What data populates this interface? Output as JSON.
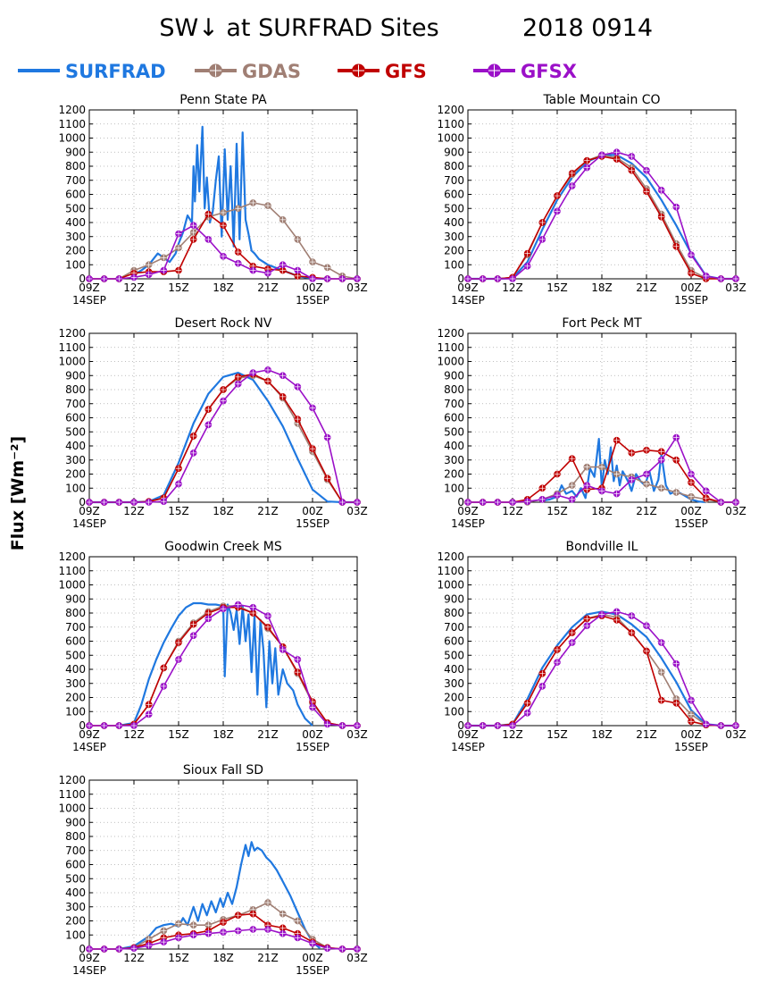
{
  "figure": {
    "title": "SW↓ at SURFRAD Sites",
    "date": "2018 0914",
    "ylabel": "Flux [Wm⁻²]"
  },
  "legend": [
    {
      "name": "SURFRAD",
      "color": "#1f78e0",
      "marker": "none"
    },
    {
      "name": "GDAS",
      "color": "#a07f74",
      "marker": "circle"
    },
    {
      "name": "GFS",
      "color": "#c00000",
      "marker": "circle"
    },
    {
      "name": "GFSX",
      "color": "#9b10c8",
      "marker": "circle"
    }
  ],
  "axes": {
    "xticks": [
      "09Z",
      "12Z",
      "15Z",
      "18Z",
      "21Z",
      "00Z",
      "03Z"
    ],
    "xsub": [
      {
        "at": "09Z",
        "text": "14SEP"
      },
      {
        "at": "00Z",
        "text": "15SEP"
      }
    ],
    "xlim_hours": [
      9,
      27
    ],
    "ylim": [
      0,
      1200
    ],
    "yticks": [
      0,
      100,
      200,
      300,
      400,
      500,
      600,
      700,
      800,
      900,
      1000,
      1100,
      1200
    ],
    "grid": true
  },
  "chart_data": [
    {
      "type": "line",
      "title": "Penn State PA",
      "x_hours": [
        9,
        10,
        11,
        12,
        13,
        14,
        15,
        16,
        17,
        18,
        19,
        20,
        21,
        22,
        23,
        24,
        25,
        26,
        27
      ],
      "series": [
        {
          "name": "SURFRAD",
          "x": [
            12,
            12.5,
            13,
            13.3,
            13.6,
            14,
            14.4,
            14.8,
            15,
            15.3,
            15.6,
            15.9,
            16,
            16.1,
            16.25,
            16.4,
            16.6,
            16.75,
            16.9,
            17.1,
            17.3,
            17.5,
            17.7,
            17.9,
            18.1,
            18.3,
            18.5,
            18.7,
            18.9,
            19.1,
            19.3,
            19.5,
            19.7,
            19.9,
            20.1,
            20.4,
            20.7,
            21,
            21.5,
            22,
            22.5,
            23,
            23.5,
            24,
            24.5,
            25
          ],
          "values": [
            30,
            60,
            100,
            140,
            180,
            150,
            120,
            180,
            250,
            330,
            450,
            400,
            800,
            550,
            950,
            620,
            1080,
            500,
            720,
            400,
            480,
            700,
            870,
            300,
            920,
            420,
            800,
            230,
            960,
            280,
            1040,
            420,
            320,
            200,
            180,
            140,
            120,
            100,
            80,
            60,
            40,
            20,
            10,
            5,
            2,
            0
          ]
        },
        {
          "name": "GDAS",
          "values": [
            0,
            0,
            0,
            60,
            100,
            150,
            220,
            330,
            440,
            470,
            500,
            540,
            520,
            420,
            280,
            120,
            80,
            20,
            0
          ]
        },
        {
          "name": "GFS",
          "values": [
            0,
            0,
            0,
            40,
            50,
            50,
            60,
            280,
            460,
            380,
            190,
            90,
            70,
            60,
            20,
            10,
            0,
            0,
            0
          ]
        },
        {
          "name": "GFSX",
          "values": [
            0,
            0,
            0,
            10,
            30,
            60,
            320,
            380,
            280,
            160,
            110,
            60,
            40,
            100,
            60,
            0,
            0,
            0,
            0
          ]
        }
      ]
    },
    {
      "type": "line",
      "title": "Table Mountain CO",
      "x_hours": [
        9,
        10,
        11,
        12,
        13,
        14,
        15,
        16,
        17,
        18,
        19,
        20,
        21,
        22,
        23,
        24,
        25,
        26,
        27
      ],
      "series": [
        {
          "name": "SURFRAD",
          "values": [
            0,
            0,
            0,
            5,
            120,
            350,
            560,
            720,
            830,
            880,
            880,
            820,
            720,
            560,
            380,
            180,
            20,
            0,
            0
          ]
        },
        {
          "name": "GDAS",
          "values": [
            0,
            0,
            0,
            10,
            170,
            400,
            590,
            740,
            840,
            880,
            860,
            790,
            640,
            460,
            250,
            60,
            5,
            0,
            0
          ]
        },
        {
          "name": "GFS",
          "values": [
            0,
            0,
            0,
            10,
            180,
            400,
            590,
            750,
            840,
            870,
            850,
            770,
            620,
            440,
            230,
            40,
            0,
            0,
            0
          ]
        },
        {
          "name": "GFSX",
          "values": [
            0,
            0,
            0,
            0,
            90,
            280,
            480,
            660,
            790,
            880,
            900,
            870,
            770,
            630,
            510,
            170,
            20,
            0,
            0
          ]
        }
      ]
    },
    {
      "type": "line",
      "title": "Desert Rock NV",
      "x_hours": [
        9,
        10,
        11,
        12,
        13,
        14,
        15,
        16,
        17,
        18,
        19,
        20,
        21,
        22,
        23,
        24,
        25,
        26,
        27
      ],
      "series": [
        {
          "name": "SURFRAD",
          "values": [
            0,
            0,
            0,
            0,
            5,
            50,
            280,
            560,
            770,
            890,
            920,
            870,
            720,
            540,
            310,
            90,
            5,
            0,
            0
          ]
        },
        {
          "name": "GDAS",
          "values": [
            0,
            0,
            0,
            0,
            5,
            30,
            240,
            470,
            660,
            800,
            880,
            900,
            860,
            740,
            560,
            360,
            160,
            0,
            0
          ]
        },
        {
          "name": "GFS",
          "values": [
            0,
            0,
            0,
            0,
            5,
            30,
            240,
            470,
            660,
            800,
            890,
            910,
            860,
            750,
            590,
            380,
            170,
            0,
            0
          ]
        },
        {
          "name": "GFSX",
          "values": [
            0,
            0,
            0,
            0,
            0,
            5,
            130,
            350,
            550,
            720,
            840,
            920,
            940,
            900,
            820,
            670,
            460,
            0,
            0
          ]
        }
      ]
    },
    {
      "type": "line",
      "title": "Fort Peck MT",
      "x_hours": [
        9,
        10,
        11,
        12,
        13,
        14,
        15,
        16,
        17,
        18,
        19,
        20,
        21,
        22,
        23,
        24,
        25,
        26,
        27
      ],
      "series": [
        {
          "name": "SURFRAD",
          "x": [
            14,
            14.5,
            15,
            15.3,
            15.6,
            16,
            16.3,
            16.6,
            16.9,
            17.2,
            17.5,
            17.8,
            18,
            18.2,
            18.4,
            18.6,
            18.8,
            19,
            19.2,
            19.4,
            19.6,
            19.8,
            20,
            20.3,
            20.6,
            20.9,
            21.2,
            21.5,
            21.8,
            22,
            22.3,
            22.6,
            23,
            23.5,
            24,
            24.5,
            25
          ],
          "values": [
            10,
            20,
            40,
            120,
            60,
            80,
            40,
            100,
            30,
            240,
            180,
            450,
            100,
            300,
            200,
            390,
            150,
            260,
            120,
            220,
            180,
            140,
            80,
            200,
            150,
            120,
            220,
            80,
            160,
            340,
            120,
            60,
            80,
            50,
            20,
            5,
            0
          ]
        },
        {
          "name": "GDAS",
          "values": [
            0,
            0,
            0,
            0,
            0,
            20,
            60,
            120,
            250,
            250,
            200,
            180,
            130,
            100,
            70,
            40,
            20,
            0,
            0
          ]
        },
        {
          "name": "GFS",
          "values": [
            0,
            0,
            0,
            0,
            20,
            100,
            200,
            310,
            90,
            100,
            440,
            350,
            370,
            360,
            300,
            140,
            30,
            0,
            0
          ]
        },
        {
          "name": "GFSX",
          "values": [
            0,
            0,
            0,
            0,
            5,
            20,
            50,
            20,
            120,
            80,
            60,
            160,
            200,
            300,
            460,
            200,
            80,
            0,
            0
          ]
        }
      ]
    },
    {
      "type": "line",
      "title": "Goodwin Creek MS",
      "x_hours": [
        9,
        10,
        11,
        12,
        13,
        14,
        15,
        16,
        17,
        18,
        19,
        20,
        21,
        22,
        23,
        24,
        25,
        26,
        27
      ],
      "series": [
        {
          "name": "SURFRAD",
          "x": [
            11,
            12,
            12.5,
            13,
            13.5,
            14,
            14.5,
            15,
            15.5,
            16,
            16.5,
            17,
            17.5,
            18,
            18.1,
            18.3,
            18.5,
            18.7,
            18.9,
            19.1,
            19.3,
            19.5,
            19.7,
            19.9,
            20.1,
            20.3,
            20.5,
            20.7,
            20.9,
            21.1,
            21.3,
            21.5,
            21.7,
            22,
            22.3,
            22.7,
            23,
            23.5,
            24
          ],
          "values": [
            0,
            20,
            150,
            330,
            470,
            590,
            690,
            780,
            840,
            870,
            870,
            860,
            860,
            850,
            350,
            860,
            800,
            680,
            820,
            580,
            850,
            600,
            790,
            380,
            780,
            220,
            750,
            540,
            130,
            600,
            300,
            550,
            220,
            400,
            300,
            250,
            150,
            50,
            0
          ]
        },
        {
          "name": "GDAS",
          "values": [
            0,
            0,
            0,
            10,
            150,
            410,
            600,
            730,
            810,
            850,
            850,
            800,
            690,
            560,
            370,
            160,
            20,
            0,
            0
          ]
        },
        {
          "name": "GFS",
          "values": [
            0,
            0,
            0,
            10,
            150,
            410,
            590,
            720,
            800,
            840,
            840,
            800,
            700,
            560,
            380,
            170,
            20,
            0,
            0
          ]
        },
        {
          "name": "GFSX",
          "values": [
            0,
            0,
            0,
            0,
            80,
            280,
            470,
            640,
            760,
            830,
            860,
            840,
            780,
            540,
            470,
            130,
            10,
            0,
            0
          ]
        }
      ]
    },
    {
      "type": "line",
      "title": "Bondville IL",
      "x_hours": [
        9,
        10,
        11,
        12,
        13,
        14,
        15,
        16,
        17,
        18,
        19,
        20,
        21,
        22,
        23,
        24,
        25,
        26,
        27
      ],
      "series": [
        {
          "name": "SURFRAD",
          "values": [
            0,
            0,
            0,
            10,
            190,
            410,
            570,
            700,
            790,
            810,
            790,
            720,
            630,
            480,
            310,
            110,
            10,
            0,
            0
          ]
        },
        {
          "name": "GDAS",
          "values": [
            0,
            0,
            0,
            10,
            160,
            370,
            540,
            660,
            760,
            790,
            770,
            660,
            530,
            380,
            190,
            80,
            5,
            0,
            0
          ]
        },
        {
          "name": "GFS",
          "values": [
            0,
            0,
            0,
            10,
            160,
            370,
            540,
            660,
            760,
            780,
            750,
            660,
            530,
            180,
            160,
            30,
            5,
            0,
            0
          ]
        },
        {
          "name": "GFSX",
          "values": [
            0,
            0,
            0,
            0,
            90,
            280,
            450,
            590,
            710,
            790,
            810,
            780,
            710,
            590,
            440,
            180,
            10,
            0,
            0
          ]
        }
      ]
    },
    {
      "type": "line",
      "title": "Sioux Fall SD",
      "x_hours": [
        9,
        10,
        11,
        12,
        13,
        14,
        15,
        16,
        17,
        18,
        19,
        20,
        21,
        22,
        23,
        24,
        25,
        26,
        27
      ],
      "series": [
        {
          "name": "SURFRAD",
          "x": [
            11,
            12,
            13,
            13.5,
            14,
            14.5,
            15,
            15.3,
            15.6,
            16,
            16.3,
            16.6,
            16.9,
            17.2,
            17.5,
            17.8,
            18,
            18.3,
            18.6,
            18.9,
            19.2,
            19.5,
            19.7,
            19.9,
            20.1,
            20.3,
            20.6,
            20.9,
            21.2,
            21.6,
            22,
            22.5,
            23,
            23.5,
            24,
            24.5
          ],
          "values": [
            0,
            20,
            90,
            150,
            170,
            180,
            160,
            220,
            170,
            300,
            200,
            320,
            240,
            340,
            260,
            360,
            300,
            400,
            320,
            440,
            600,
            740,
            660,
            760,
            700,
            720,
            700,
            650,
            620,
            560,
            480,
            380,
            260,
            140,
            50,
            5
          ]
        },
        {
          "name": "GDAS",
          "values": [
            0,
            0,
            0,
            10,
            70,
            130,
            180,
            170,
            170,
            210,
            240,
            280,
            330,
            250,
            200,
            70,
            10,
            0,
            0
          ]
        },
        {
          "name": "GFS",
          "values": [
            0,
            0,
            0,
            10,
            40,
            80,
            100,
            110,
            130,
            190,
            240,
            250,
            170,
            150,
            110,
            50,
            10,
            0,
            0
          ]
        },
        {
          "name": "GFSX",
          "values": [
            0,
            0,
            0,
            5,
            25,
            50,
            80,
            100,
            110,
            120,
            130,
            140,
            140,
            110,
            80,
            40,
            5,
            0,
            0
          ]
        }
      ]
    }
  ]
}
